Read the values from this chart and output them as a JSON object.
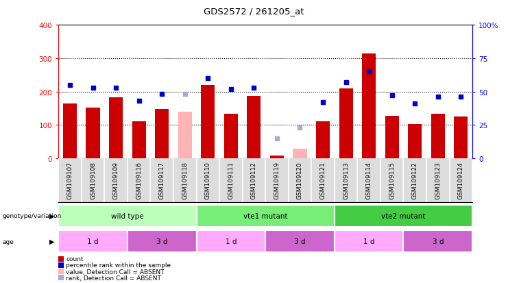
{
  "title": "GDS2572 / 261205_at",
  "samples": [
    "GSM109107",
    "GSM109108",
    "GSM109109",
    "GSM109116",
    "GSM109117",
    "GSM109118",
    "GSM109110",
    "GSM109111",
    "GSM109112",
    "GSM109119",
    "GSM109120",
    "GSM109121",
    "GSM109113",
    "GSM109114",
    "GSM109115",
    "GSM109122",
    "GSM109123",
    "GSM109124"
  ],
  "counts": [
    165,
    152,
    183,
    110,
    148,
    null,
    220,
    133,
    187,
    8,
    null,
    110,
    210,
    315,
    128,
    102,
    133,
    125
  ],
  "counts_absent": [
    null,
    null,
    null,
    null,
    null,
    140,
    null,
    null,
    null,
    null,
    28,
    null,
    null,
    null,
    null,
    null,
    null,
    null
  ],
  "ranks": [
    55,
    53,
    53,
    43,
    48,
    null,
    60,
    52,
    53,
    null,
    null,
    42,
    57,
    65,
    47,
    41,
    46,
    46
  ],
  "ranks_absent": [
    null,
    null,
    null,
    null,
    null,
    48,
    null,
    null,
    null,
    15,
    23,
    null,
    null,
    null,
    null,
    null,
    null,
    null
  ],
  "ylim_left": [
    0,
    400
  ],
  "ylim_right": [
    0,
    100
  ],
  "yticks_left": [
    0,
    100,
    200,
    300,
    400
  ],
  "yticks_right": [
    0,
    25,
    50,
    75,
    100
  ],
  "ytick_labels_right": [
    "0",
    "25",
    "50",
    "75",
    "100%"
  ],
  "bar_color": "#cc0000",
  "bar_absent_color": "#ffb3b3",
  "rank_color": "#0000cc",
  "rank_absent_color": "#aaaadd",
  "bg_color": "#ffffff",
  "xtick_bg": "#dddddd",
  "genotype_groups": [
    {
      "label": "wild type",
      "start": 0,
      "end": 5,
      "color": "#bbffbb"
    },
    {
      "label": "vte1 mutant",
      "start": 6,
      "end": 11,
      "color": "#77ee77"
    },
    {
      "label": "vte2 mutant",
      "start": 12,
      "end": 17,
      "color": "#44cc44"
    }
  ],
  "age_groups": [
    {
      "label": "1 d",
      "start": 0,
      "end": 2,
      "color": "#ffaaff"
    },
    {
      "label": "3 d",
      "start": 3,
      "end": 5,
      "color": "#cc66cc"
    },
    {
      "label": "1 d",
      "start": 6,
      "end": 8,
      "color": "#ffaaff"
    },
    {
      "label": "3 d",
      "start": 9,
      "end": 11,
      "color": "#cc66cc"
    },
    {
      "label": "1 d",
      "start": 12,
      "end": 14,
      "color": "#ffaaff"
    },
    {
      "label": "3 d",
      "start": 15,
      "end": 17,
      "color": "#cc66cc"
    }
  ],
  "legend_items": [
    {
      "color": "#cc0000",
      "label": "count"
    },
    {
      "color": "#0000cc",
      "label": "percentile rank within the sample"
    },
    {
      "color": "#ffb3b3",
      "label": "value, Detection Call = ABSENT"
    },
    {
      "color": "#aaaadd",
      "label": "rank, Detection Call = ABSENT"
    }
  ]
}
